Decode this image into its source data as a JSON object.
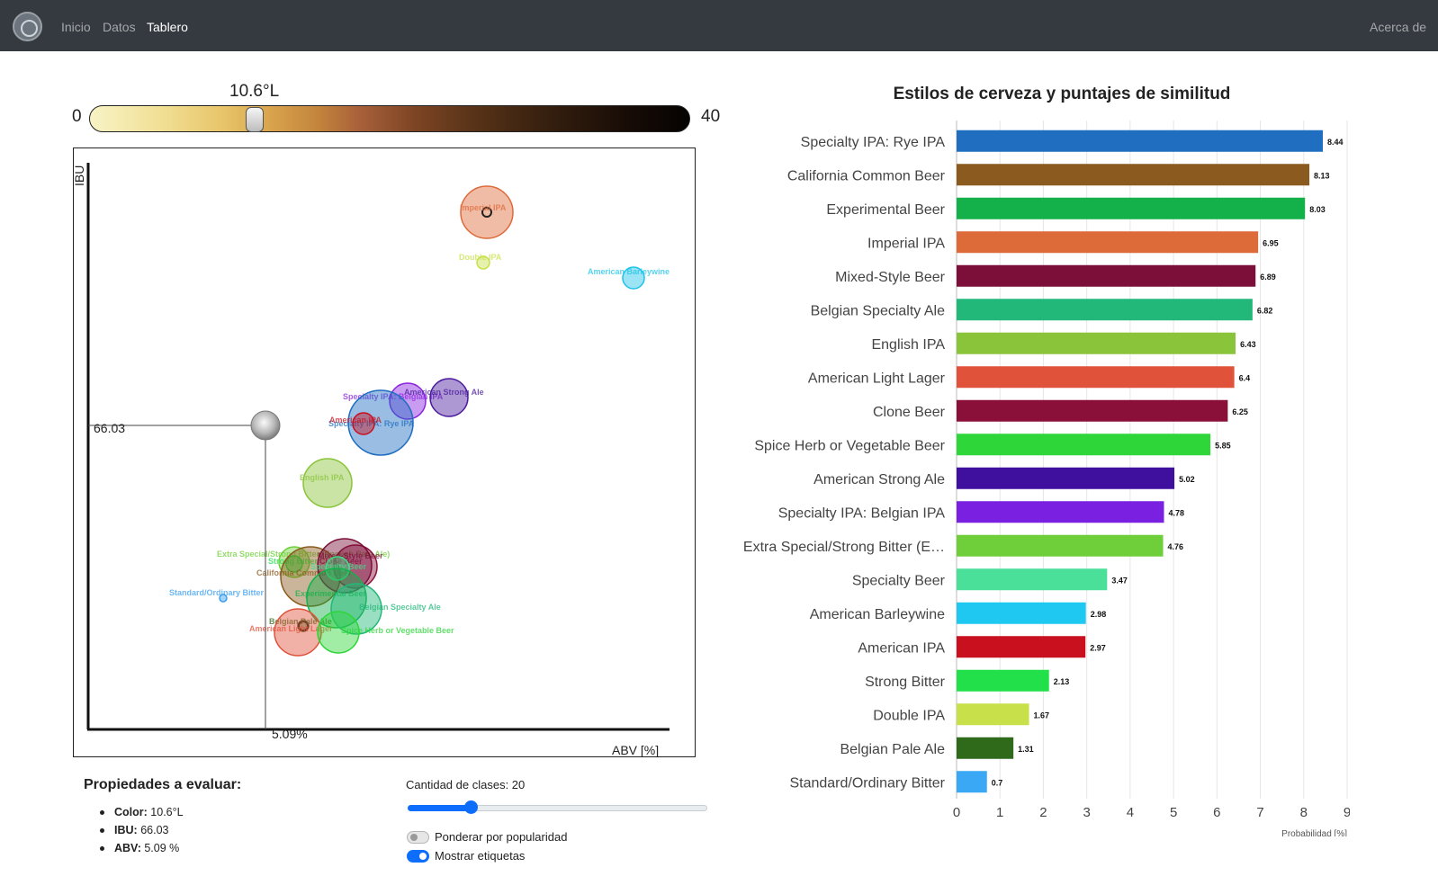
{
  "nav": {
    "links": [
      "Inicio",
      "Datos",
      "Tablero"
    ],
    "right_link": "Acerca de"
  },
  "color_slider": {
    "current_label": "10.6°L",
    "min_label": "0",
    "max_label": "40",
    "value": 10.6,
    "min": 0,
    "max": 40
  },
  "scatter": {
    "ylabel": "IBU",
    "xlabel": "ABV [%]",
    "ibu_guide_label": "66.03",
    "abv_guide_label": "5.09%",
    "bubbles": [
      {
        "label": "Imperial IPA",
        "color": "#dd6b3a",
        "selected": true
      },
      {
        "label": "Double IPA",
        "color": "#c8e04a",
        "selected": false
      },
      {
        "label": "American Barleywine",
        "color": "#1fc3e8",
        "selected": false
      },
      {
        "label": "Specialty IPA: Belgian IPA",
        "color": "#8a24e0",
        "selected": false
      },
      {
        "label": "American Strong Ale",
        "color": "#4a1a9e",
        "selected": false
      },
      {
        "label": "Specialty IPA: Rye IPA",
        "color": "#1f6ec0",
        "selected": false
      },
      {
        "label": "American IPA",
        "color": "#c8101e",
        "selected": false
      },
      {
        "label": "English IPA",
        "color": "#8ac43a",
        "selected": false
      },
      {
        "label": "Extra Special/Strong Bitter (English Pale Ale)",
        "color": "#6fcf3a",
        "selected": false
      },
      {
        "label": "Strong Bitter",
        "color": "#22e04a",
        "selected": false
      },
      {
        "label": "California Common Beer",
        "color": "#8b5a1e",
        "selected": false
      },
      {
        "label": "Clone Beer",
        "color": "#8a103a",
        "selected": false
      },
      {
        "label": "Mixed-Style Beer",
        "color": "#7b0f3a",
        "selected": false
      },
      {
        "label": "Specialty Beer",
        "color": "#3fdd88",
        "selected": false
      },
      {
        "label": "Experimental Beer",
        "color": "#14b04a",
        "selected": false
      },
      {
        "label": "Belgian Specialty Ale",
        "color": "#22b87a",
        "selected": false
      },
      {
        "label": "Standard/Ordinary Bitter",
        "color": "#3a9ef0",
        "selected": false
      },
      {
        "label": "Belgian Pale Ale",
        "color": "#2e6a1a",
        "selected": true
      },
      {
        "label": "American Light Lager",
        "color": "#e0523a",
        "selected": false
      },
      {
        "label": "Spice Herb or Vegetable Beer",
        "color": "#2ed63a",
        "selected": false
      }
    ]
  },
  "properties": {
    "title": "Propiedades a evaluar:",
    "items": [
      {
        "key": "Color:",
        "value": "10.6°L"
      },
      {
        "key": "IBU:",
        "value": "66.03"
      },
      {
        "key": "ABV:",
        "value": "5.09 %"
      }
    ]
  },
  "controls": {
    "classes_label": "Cantidad de clases: 20",
    "classes_value": 20,
    "classes_min": 1,
    "classes_max": 100,
    "popularity_label": "Ponderar por popularidad",
    "popularity_on": false,
    "labels_label": "Mostrar etiquetas",
    "labels_on": true
  },
  "chart_data": {
    "type": "bar",
    "orientation": "horizontal",
    "title": "Estilos de cerveza y puntajes de similitud",
    "xlabel": "Probabilidad [%]",
    "xlim": [
      0,
      9
    ],
    "xticks": [
      0,
      1,
      2,
      3,
      4,
      5,
      6,
      7,
      8,
      9
    ],
    "grid": true,
    "categories": [
      "Specialty IPA: Rye IPA",
      "California Common Beer",
      "Experimental Beer",
      "Imperial IPA",
      "Mixed-Style Beer",
      "Belgian Specialty Ale",
      "English IPA",
      "American Light Lager",
      "Clone Beer",
      "Spice Herb or Vegetable Beer",
      "American Strong Ale",
      "Specialty IPA: Belgian IPA",
      "Extra Special/Strong Bitter (E…",
      "Specialty Beer",
      "American Barleywine",
      "American IPA",
      "Strong Bitter",
      "Double IPA",
      "Belgian Pale Ale",
      "Standard/Ordinary Bitter"
    ],
    "values": [
      8.44,
      8.13,
      8.03,
      6.95,
      6.89,
      6.82,
      6.43,
      6.4,
      6.25,
      5.85,
      5.02,
      4.78,
      4.76,
      3.47,
      2.98,
      2.97,
      2.13,
      1.67,
      1.31,
      0.7
    ],
    "value_labels": [
      "8.44",
      "8.13",
      "8.03",
      "6.95",
      "6.89",
      "6.82",
      "6.43",
      "6.4",
      "6.25",
      "5.85",
      "5.02",
      "4.78",
      "4.76",
      "3.47",
      "2.98",
      "2.97",
      "2.13",
      "1.67",
      "1.31",
      "0.7"
    ],
    "colors": [
      "#1f6ec0",
      "#8b5a1e",
      "#14b04a",
      "#dd6b3a",
      "#7b0f3a",
      "#22b87a",
      "#8ac43a",
      "#e0523a",
      "#8a103a",
      "#2ed63a",
      "#3f0f9e",
      "#7a20e0",
      "#6fcf3a",
      "#4ae09a",
      "#1fc8f0",
      "#c8101e",
      "#22e04a",
      "#c8e04a",
      "#2e6a1a",
      "#3aa8f5"
    ]
  }
}
